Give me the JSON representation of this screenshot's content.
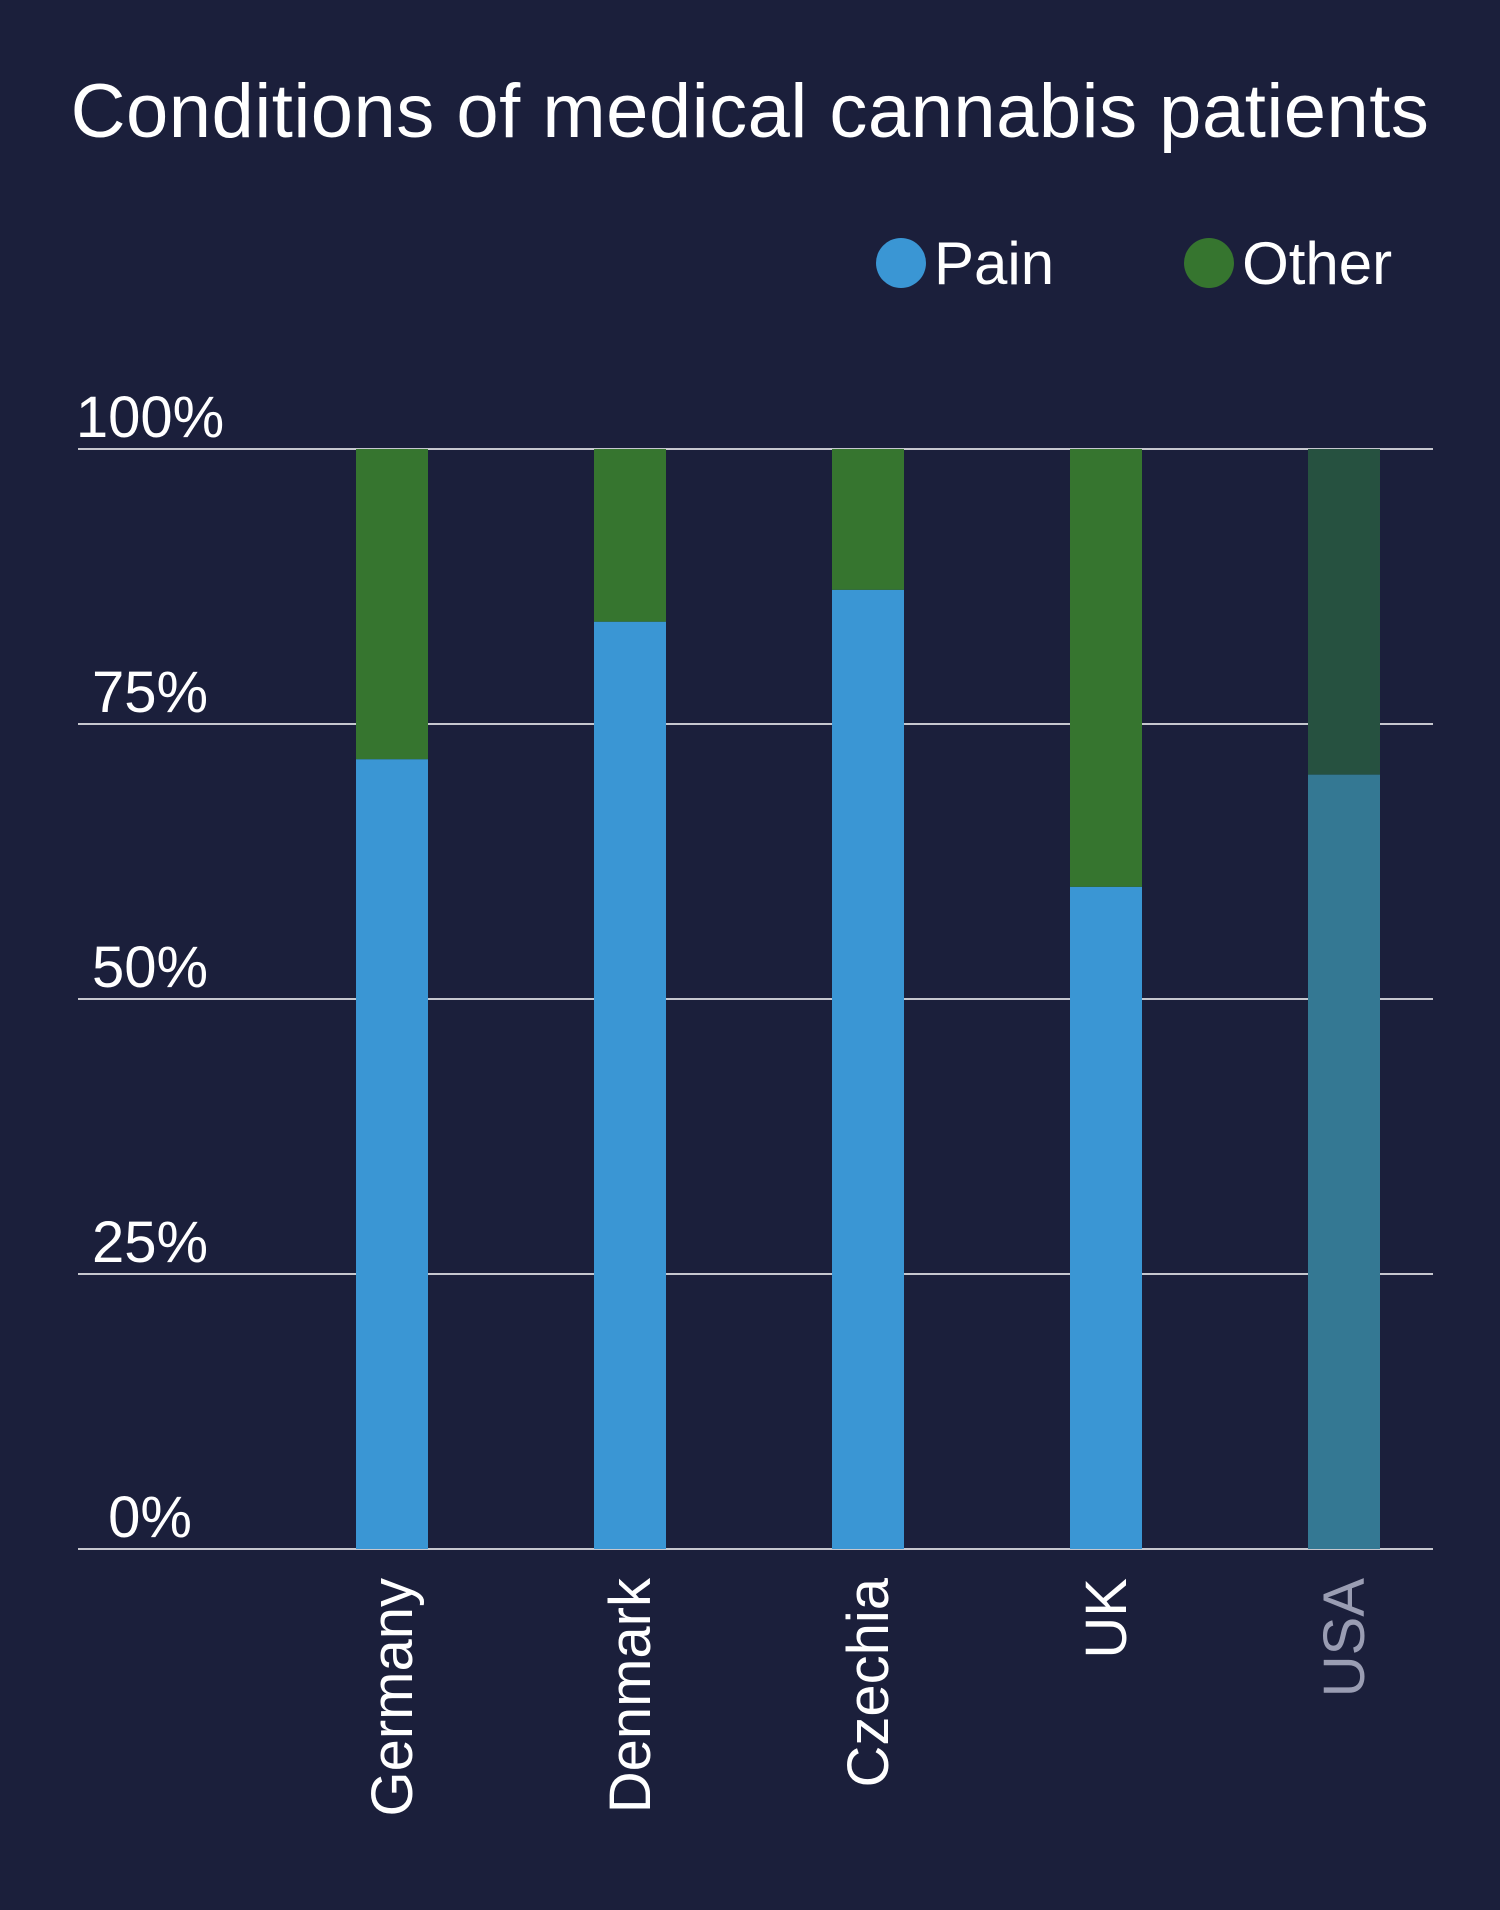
{
  "chart_data": {
    "type": "bar",
    "stacked": true,
    "title": "Conditions of medical cannabis patients",
    "xlabel": "",
    "ylabel": "",
    "categories": [
      "Germany",
      "Denmark",
      "Czechia",
      "UK",
      "USA"
    ],
    "series": [
      {
        "name": "Pain",
        "color": "#3a96d4",
        "values": [
          71.8,
          84.3,
          87.2,
          60.2,
          70.4
        ]
      },
      {
        "name": "Other",
        "color": "#36752f",
        "values": [
          28.2,
          15.7,
          12.8,
          39.8,
          29.6
        ]
      }
    ],
    "muted_categories": [
      "USA"
    ],
    "muted_colors": {
      "Pain": "#347893",
      "Other": "#265140",
      "label": "#9a9db3"
    },
    "ylim": [
      0,
      100
    ],
    "yticks": [
      0,
      25,
      50,
      75,
      100
    ],
    "ytick_labels": [
      "0%",
      "25%",
      "50%",
      "75%",
      "100%"
    ],
    "grid": true,
    "legend_position": "top-right",
    "colors": {
      "background": "#1b1f3b",
      "text": "#ffffff",
      "grid": "#ffffff"
    }
  }
}
